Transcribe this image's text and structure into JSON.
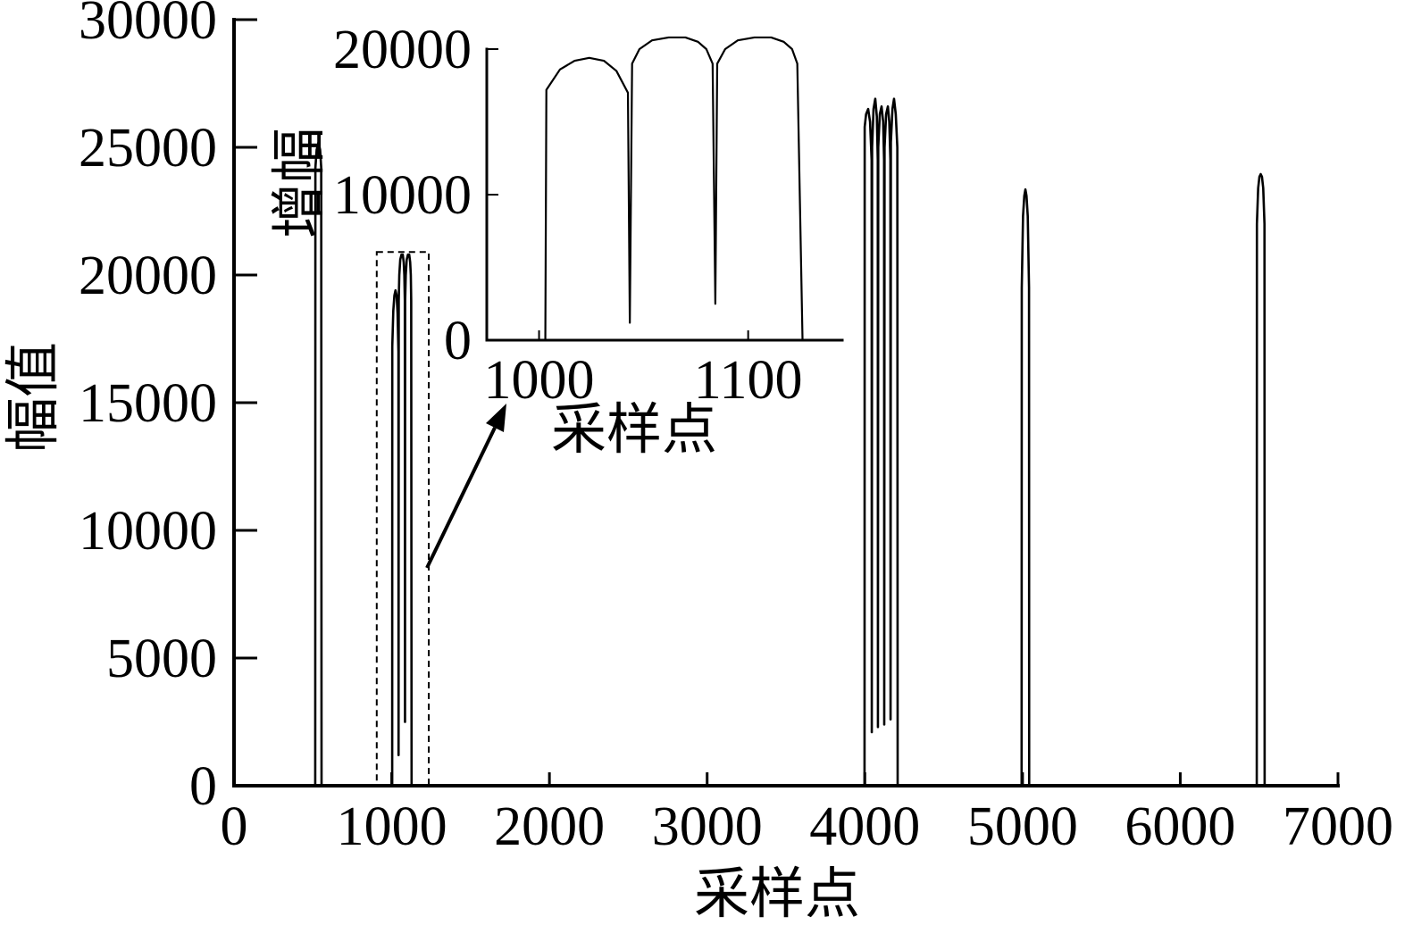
{
  "chart_data": [
    {
      "type": "line",
      "xlabel": "采样点",
      "ylabel": "幅值",
      "xlim": [
        0,
        7000
      ],
      "ylim": [
        0,
        30000
      ],
      "xticks": [
        "0",
        "1000",
        "2000",
        "3000",
        "4000",
        "5000",
        "6000",
        "7000"
      ],
      "yticks": [
        "0",
        "5000",
        "10000",
        "15000",
        "20000",
        "25000",
        "30000"
      ],
      "grid": false,
      "zoom_box": {
        "x": [
          905,
          1235
        ],
        "y": [
          0,
          20900
        ]
      },
      "series": [
        {
          "x": [
            515,
            516,
            524,
            536,
            546,
            553,
            555,
            1003,
            1003.5,
            1010,
            1017,
            1024,
            1031,
            1037,
            1042.5,
            1043.4,
            1044.5,
            1048,
            1054,
            1062,
            1070,
            1076,
            1080,
            1083,
            1084.3,
            1085.2,
            1089,
            1095,
            1103,
            1111,
            1117,
            1121,
            1123.5,
            1126,
            3998,
            3999,
            4008,
            4021,
            4033,
            4043,
            4044,
            4046,
            4055,
            4066,
            4076,
            4082,
            4083,
            4085,
            4095,
            4106,
            4116,
            4122,
            4123,
            4125,
            4135,
            4146,
            4155,
            4162,
            4163,
            4165,
            4175,
            4185,
            4196,
            4206,
            4208,
            4994,
            4995,
            5003,
            5011,
            5018,
            5025,
            5033,
            5041,
            5042,
            6485,
            6486,
            6494,
            6502,
            6510,
            6518,
            6526,
            6534,
            6535
          ],
          "y": [
            0,
            24200,
            24900,
            25200,
            24900,
            24200,
            0,
            0,
            17200,
            18600,
            19200,
            19400,
            19200,
            18500,
            17000,
            1200,
            19000,
            20000,
            20600,
            20800,
            20800,
            20500,
            20000,
            19000,
            2500,
            19000,
            20000,
            20600,
            20800,
            20800,
            20500,
            20000,
            19000,
            0,
            0,
            25800,
            26300,
            26500,
            26000,
            24500,
            2100,
            25000,
            26500,
            26900,
            26200,
            24500,
            2300,
            25000,
            26300,
            26600,
            26000,
            24500,
            2400,
            25000,
            26300,
            26600,
            26000,
            24500,
            2600,
            25200,
            26500,
            26900,
            26300,
            25000,
            0,
            0,
            19500,
            22300,
            23100,
            23350,
            23100,
            22300,
            19500,
            0,
            0,
            22000,
            23400,
            23850,
            23950,
            23850,
            23400,
            22000,
            0
          ]
        }
      ]
    },
    {
      "type": "line",
      "xlabel": "采样点",
      "ylabel": "增幅",
      "xlim": [
        975,
        1145
      ],
      "ylim": [
        0,
        20000
      ],
      "xticks": [
        "1000",
        "1100"
      ],
      "yticks": [
        "0",
        "10000",
        "20000"
      ],
      "grid": false,
      "series": [
        {
          "x": [
            1003,
            1003.5,
            1010,
            1017,
            1024,
            1031,
            1037,
            1042.5,
            1043.4,
            1044.5,
            1048,
            1054,
            1062,
            1070,
            1076,
            1080,
            1083,
            1084.3,
            1085.2,
            1089,
            1095,
            1103,
            1111,
            1117,
            1121,
            1123.5,
            1126
          ],
          "y": [
            0,
            17200,
            18600,
            19200,
            19400,
            19200,
            18500,
            17000,
            1200,
            19000,
            20000,
            20600,
            20800,
            20800,
            20500,
            20000,
            19000,
            2500,
            19000,
            20000,
            20600,
            20800,
            20800,
            20500,
            20000,
            19000,
            0
          ]
        }
      ]
    }
  ]
}
